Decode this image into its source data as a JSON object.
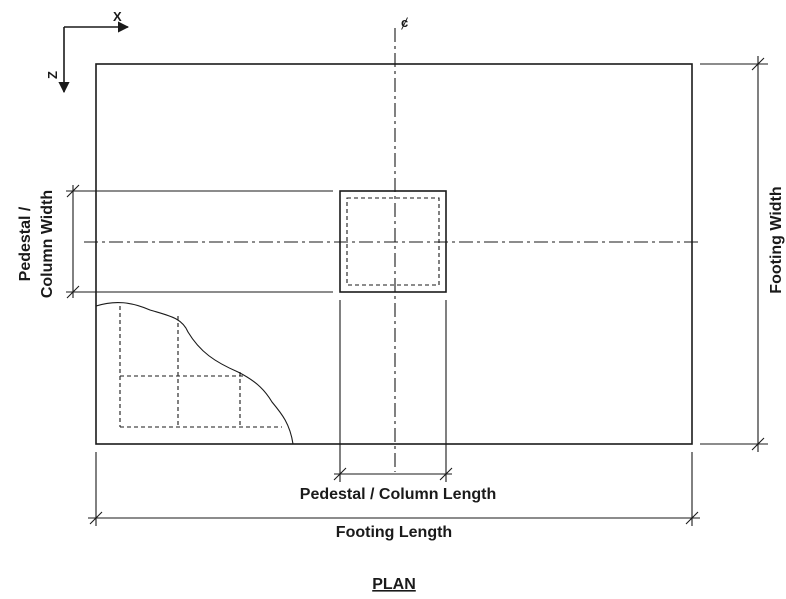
{
  "axes": {
    "x_label": "X",
    "z_label": "Z"
  },
  "centerline_symbol": "ȼ",
  "labels": {
    "pedestal_width_line1": "Pedestal /",
    "pedestal_width_line2": "Column Width",
    "footing_width": "Footing Width",
    "pedestal_length": "Pedestal / Column Length",
    "footing_length": "Footing Length"
  },
  "view_title": "PLAN"
}
